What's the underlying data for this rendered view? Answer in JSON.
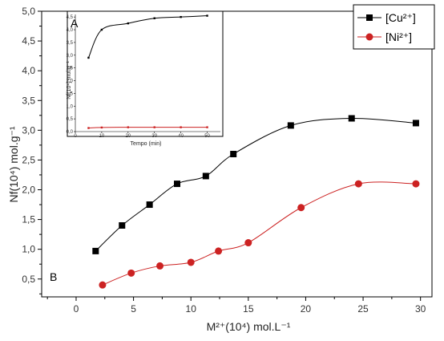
{
  "chart_data": [
    {
      "type": "scatter",
      "panel_label": "B",
      "xlabel": "M²⁺(10⁴) mol.L⁻¹",
      "ylabel": "Nf(10⁴) mol.g⁻¹",
      "xlim": [
        -3,
        31
      ],
      "ylim": [
        0.2,
        5.0
      ],
      "x_ticks": [
        0,
        5,
        10,
        15,
        20,
        25,
        30
      ],
      "x_tick_labels": [
        "0",
        "5",
        "10",
        "15",
        "20",
        "25",
        "30"
      ],
      "y_ticks": [
        0.5,
        1.0,
        1.5,
        2.0,
        2.5,
        3.0,
        3.5,
        4.0,
        4.5,
        5.0
      ],
      "y_tick_labels": [
        "0,5",
        "1,0",
        "1,5",
        "2,0",
        "2,5",
        "3,0",
        "3,5",
        "4,0",
        "4,5",
        "5,0"
      ],
      "grid": false,
      "legend_position": "top-right",
      "series": [
        {
          "name": "[Cu²⁺]",
          "color": "#000000",
          "marker": "square",
          "x": [
            1.7,
            4.0,
            6.4,
            8.8,
            11.3,
            13.7,
            18.7,
            24.0,
            29.6
          ],
          "y": [
            0.97,
            1.4,
            1.75,
            2.1,
            2.23,
            2.6,
            3.08,
            3.2,
            3.12
          ]
        },
        {
          "name": "[Ni²⁺]",
          "color": "#cc2222",
          "marker": "circle",
          "x": [
            2.3,
            4.8,
            7.3,
            10.0,
            12.4,
            15.0,
            19.6,
            24.6,
            29.6
          ],
          "y": [
            0.4,
            0.6,
            0.72,
            0.78,
            0.97,
            1.11,
            1.7,
            2.1,
            2.1
          ]
        }
      ]
    },
    {
      "type": "scatter",
      "panel_label": "A",
      "xlabel": "Tempo (min)",
      "ylabel": "Nf(10⁴) mol.g⁻¹",
      "xlim": [
        0,
        55
      ],
      "ylim": [
        0,
        4.6
      ],
      "x_ticks": [
        0,
        10,
        20,
        30,
        40,
        50
      ],
      "x_tick_labels": [
        "0",
        "10",
        "20",
        "30",
        "40",
        "50"
      ],
      "y_ticks": [
        0,
        0.5,
        1.0,
        1.5,
        2.0,
        2.5,
        3.0,
        3.5,
        4.0,
        4.5
      ],
      "y_tick_labels": [
        "0,0",
        "0,5",
        "1,0",
        "1,5",
        "2,0",
        "2,5",
        "3,0",
        "3,5",
        "4,0",
        "4,5"
      ],
      "series": [
        {
          "name": "[Cu²⁺]",
          "color": "#000000",
          "x": [
            5,
            10,
            20,
            30,
            40,
            50
          ],
          "y": [
            2.9,
            4.0,
            4.25,
            4.45,
            4.5,
            4.55
          ]
        },
        {
          "name": "[Ni²⁺]",
          "color": "#cc2222",
          "x": [
            5,
            10,
            20,
            30,
            40,
            50
          ],
          "y": [
            0.14,
            0.16,
            0.17,
            0.17,
            0.17,
            0.17
          ]
        }
      ]
    }
  ]
}
